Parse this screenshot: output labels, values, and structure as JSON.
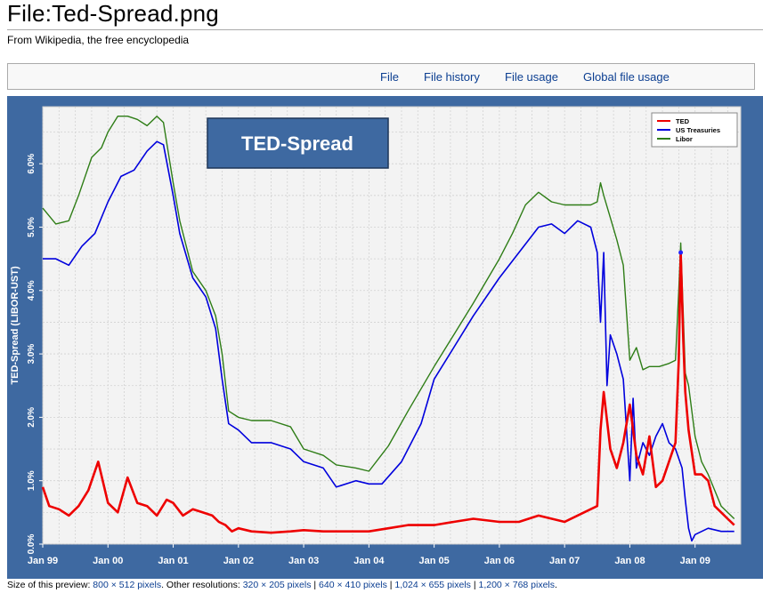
{
  "page": {
    "title": "File:Ted-Spread.png",
    "tagline": "From Wikipedia, the free encyclopedia"
  },
  "tabs": [
    {
      "label": "File"
    },
    {
      "label": "File history"
    },
    {
      "label": "File usage"
    },
    {
      "label": "Global file usage"
    }
  ],
  "footer": {
    "prefix": "Size of this preview: ",
    "preview_link": "800 × 512 pixels",
    "mid": ". Other resolutions: ",
    "res": [
      "320 × 205 pixels",
      "640 × 410 pixels",
      "1,024 × 655 pixels",
      "1,200 × 768 pixels"
    ],
    "sep": " | ",
    "end": "."
  },
  "colors": {
    "frame": "#3e69a1",
    "plot_bg": "#f3f3f3",
    "ted": "#ee0000",
    "treasuries": "#0000dd",
    "libor": "#2e7d16"
  },
  "chart_data": {
    "type": "line",
    "title": "TED-Spread",
    "ylabel": "TED-Spread (LIBOR-UST)",
    "xlabel": "",
    "ylim": [
      0,
      6.9
    ],
    "xlim": [
      1999.0,
      2009.7
    ],
    "y_ticks": [
      0,
      1,
      2,
      3,
      4,
      5,
      6
    ],
    "y_tick_labels": [
      "0.0%",
      "1.0%",
      "2.0%",
      "3.0%",
      "4.0%",
      "5.0%",
      "6.0%"
    ],
    "x_ticks": [
      1999,
      2000,
      2001,
      2002,
      2003,
      2004,
      2005,
      2006,
      2007,
      2008,
      2009
    ],
    "x_tick_labels": [
      "Jan 99",
      "Jan 00",
      "Jan 01",
      "Jan 02",
      "Jan 03",
      "Jan 04",
      "Jan 05",
      "Jan 06",
      "Jan 07",
      "Jan 08",
      "Jan 09"
    ],
    "grid": true,
    "legend": "top-right",
    "series": [
      {
        "name": "TED",
        "color": "#ee0000",
        "x": [
          1999.0,
          1999.1,
          1999.25,
          1999.4,
          1999.55,
          1999.7,
          1999.85,
          2000.0,
          2000.15,
          2000.3,
          2000.45,
          2000.6,
          2000.75,
          2000.9,
          2001.0,
          2001.15,
          2001.3,
          2001.45,
          2001.6,
          2001.7,
          2001.8,
          2001.9,
          2002.0,
          2002.2,
          2002.5,
          2002.8,
          2003.0,
          2003.3,
          2003.6,
          2004.0,
          2004.3,
          2004.6,
          2005.0,
          2005.3,
          2005.6,
          2006.0,
          2006.3,
          2006.6,
          2007.0,
          2007.3,
          2007.5,
          2007.55,
          2007.6,
          2007.7,
          2007.8,
          2007.9,
          2008.0,
          2008.1,
          2008.2,
          2008.3,
          2008.4,
          2008.5,
          2008.6,
          2008.7,
          2008.75,
          2008.78,
          2008.82,
          2008.85,
          2008.9,
          2009.0,
          2009.1,
          2009.2,
          2009.3,
          2009.4,
          2009.5,
          2009.6
        ],
        "values": [
          0.9,
          0.6,
          0.55,
          0.45,
          0.6,
          0.85,
          1.3,
          0.65,
          0.5,
          1.05,
          0.65,
          0.6,
          0.45,
          0.7,
          0.65,
          0.45,
          0.55,
          0.5,
          0.45,
          0.35,
          0.3,
          0.2,
          0.25,
          0.2,
          0.18,
          0.2,
          0.22,
          0.2,
          0.2,
          0.2,
          0.25,
          0.3,
          0.3,
          0.35,
          0.4,
          0.35,
          0.35,
          0.45,
          0.35,
          0.5,
          0.6,
          1.8,
          2.4,
          1.5,
          1.2,
          1.6,
          2.2,
          1.4,
          1.1,
          1.7,
          0.9,
          1.0,
          1.3,
          1.6,
          2.9,
          4.6,
          3.2,
          2.4,
          1.8,
          1.1,
          1.1,
          1.0,
          0.6,
          0.5,
          0.4,
          0.3
        ]
      },
      {
        "name": "US Treasuries",
        "color": "#0000dd",
        "x": [
          1999.0,
          1999.2,
          1999.4,
          1999.6,
          1999.8,
          2000.0,
          2000.2,
          2000.4,
          2000.6,
          2000.75,
          2000.85,
          2001.0,
          2001.1,
          2001.3,
          2001.5,
          2001.65,
          2001.75,
          2001.85,
          2002.0,
          2002.2,
          2002.5,
          2002.8,
          2003.0,
          2003.3,
          2003.5,
          2003.8,
          2004.0,
          2004.2,
          2004.5,
          2004.8,
          2005.0,
          2005.3,
          2005.6,
          2006.0,
          2006.3,
          2006.6,
          2006.8,
          2007.0,
          2007.2,
          2007.4,
          2007.5,
          2007.55,
          2007.6,
          2007.65,
          2007.7,
          2007.8,
          2007.9,
          2008.0,
          2008.05,
          2008.1,
          2008.2,
          2008.3,
          2008.4,
          2008.5,
          2008.6,
          2008.7,
          2008.8,
          2008.85,
          2008.9,
          2008.95,
          2009.0,
          2009.2,
          2009.4,
          2009.6
        ],
        "values": [
          4.5,
          4.5,
          4.4,
          4.7,
          4.9,
          5.4,
          5.8,
          5.9,
          6.2,
          6.35,
          6.3,
          5.5,
          4.9,
          4.2,
          3.9,
          3.4,
          2.6,
          1.9,
          1.8,
          1.6,
          1.6,
          1.5,
          1.3,
          1.2,
          0.9,
          1.0,
          0.95,
          0.95,
          1.3,
          1.9,
          2.6,
          3.1,
          3.6,
          4.2,
          4.6,
          5.0,
          5.05,
          4.9,
          5.1,
          5.0,
          4.6,
          3.5,
          4.6,
          2.5,
          3.3,
          3.0,
          2.6,
          1.0,
          2.3,
          1.2,
          1.6,
          1.4,
          1.7,
          1.9,
          1.6,
          1.5,
          1.2,
          0.7,
          0.25,
          0.05,
          0.15,
          0.25,
          0.2,
          0.2
        ]
      },
      {
        "name": "Libor",
        "color": "#2e7d16",
        "x": [
          1999.0,
          1999.2,
          1999.4,
          1999.55,
          1999.75,
          1999.9,
          2000.0,
          2000.15,
          2000.3,
          2000.45,
          2000.6,
          2000.75,
          2000.85,
          2001.0,
          2001.1,
          2001.3,
          2001.5,
          2001.65,
          2001.75,
          2001.85,
          2002.0,
          2002.2,
          2002.5,
          2002.8,
          2003.0,
          2003.3,
          2003.5,
          2003.8,
          2004.0,
          2004.3,
          2004.6,
          2005.0,
          2005.3,
          2005.6,
          2006.0,
          2006.2,
          2006.4,
          2006.6,
          2006.8,
          2007.0,
          2007.2,
          2007.4,
          2007.5,
          2007.55,
          2007.6,
          2007.7,
          2007.8,
          2007.9,
          2008.0,
          2008.1,
          2008.2,
          2008.3,
          2008.45,
          2008.6,
          2008.7,
          2008.75,
          2008.78,
          2008.82,
          2008.85,
          2008.9,
          2009.0,
          2009.1,
          2009.2,
          2009.4,
          2009.6
        ],
        "values": [
          5.3,
          5.05,
          5.1,
          5.5,
          6.1,
          6.25,
          6.5,
          6.75,
          6.75,
          6.7,
          6.6,
          6.75,
          6.65,
          5.7,
          5.1,
          4.3,
          4.0,
          3.6,
          3.0,
          2.1,
          2.0,
          1.95,
          1.95,
          1.85,
          1.5,
          1.4,
          1.25,
          1.2,
          1.15,
          1.55,
          2.1,
          2.8,
          3.3,
          3.8,
          4.5,
          4.9,
          5.35,
          5.55,
          5.4,
          5.35,
          5.35,
          5.35,
          5.4,
          5.7,
          5.5,
          5.15,
          4.8,
          4.4,
          2.9,
          3.1,
          2.75,
          2.8,
          2.8,
          2.85,
          2.9,
          4.0,
          4.75,
          3.6,
          2.7,
          2.5,
          1.7,
          1.3,
          1.1,
          0.6,
          0.4
        ]
      }
    ]
  }
}
